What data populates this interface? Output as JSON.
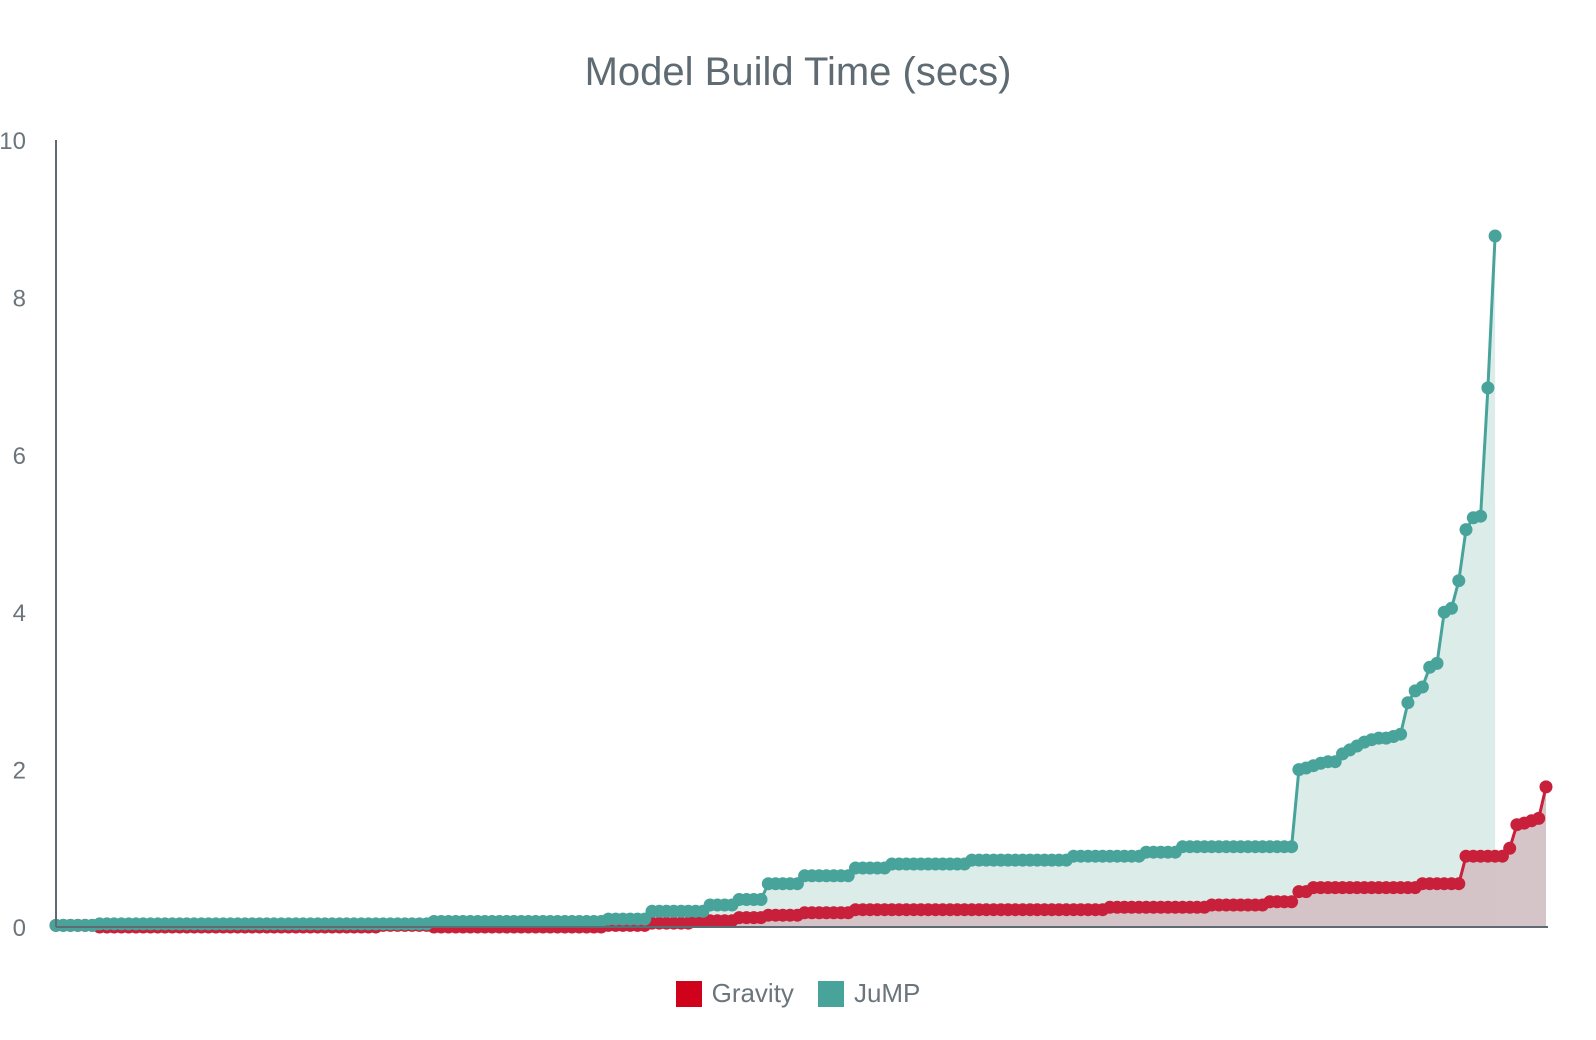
{
  "chart_data": {
    "type": "line",
    "title": "Model Build Time (secs)",
    "xlabel": "",
    "ylabel": "",
    "ylim": [
      0,
      10
    ],
    "yticks": [
      0,
      2,
      4,
      6,
      8,
      10
    ],
    "grid": false,
    "legend_position": "bottom-center",
    "x_range": [
      1,
      200
    ],
    "series": [
      {
        "name": "Gravity",
        "color": "#d0021b",
        "line_color": "#c8203a",
        "fill_color": "#d4c2c5",
        "steps": [
          {
            "from": 1,
            "to": 6,
            "value": 0.02
          },
          {
            "from": 7,
            "to": 45,
            "value": 0.0
          },
          {
            "from": 46,
            "to": 52,
            "value": 0.02
          },
          {
            "from": 53,
            "to": 76,
            "value": 0.0
          },
          {
            "from": 77,
            "to": 82,
            "value": 0.02
          },
          {
            "from": 83,
            "to": 88,
            "value": 0.05
          },
          {
            "from": 89,
            "to": 94,
            "value": 0.08
          },
          {
            "from": 95,
            "to": 98,
            "value": 0.12
          },
          {
            "from": 99,
            "to": 103,
            "value": 0.15
          },
          {
            "from": 104,
            "to": 110,
            "value": 0.18
          },
          {
            "from": 111,
            "to": 145,
            "value": 0.22
          },
          {
            "from": 146,
            "to": 159,
            "value": 0.25
          },
          {
            "from": 160,
            "to": 167,
            "value": 0.28
          },
          {
            "from": 168,
            "to": 171,
            "value": 0.32
          },
          {
            "from": 172,
            "to": 173,
            "value": 0.45
          },
          {
            "from": 174,
            "to": 188,
            "value": 0.5
          },
          {
            "from": 189,
            "to": 194,
            "value": 0.55
          },
          {
            "from": 195,
            "to": 200,
            "value": 0.9
          }
        ],
        "tail": [
          1.0,
          1.3,
          1.32,
          1.35,
          1.38,
          1.78
        ]
      },
      {
        "name": "JuMP",
        "color": "#48a39a",
        "line_color": "#48a39a",
        "fill_color": "#dbece9",
        "steps": [
          {
            "from": 1,
            "to": 6,
            "value": 0.02
          },
          {
            "from": 7,
            "to": 52,
            "value": 0.04
          },
          {
            "from": 53,
            "to": 76,
            "value": 0.07
          },
          {
            "from": 77,
            "to": 82,
            "value": 0.1
          },
          {
            "from": 83,
            "to": 90,
            "value": 0.2
          },
          {
            "from": 91,
            "to": 94,
            "value": 0.28
          },
          {
            "from": 95,
            "to": 98,
            "value": 0.35
          },
          {
            "from": 99,
            "to": 103,
            "value": 0.55
          },
          {
            "from": 104,
            "to": 110,
            "value": 0.65
          },
          {
            "from": 111,
            "to": 115,
            "value": 0.75
          },
          {
            "from": 116,
            "to": 126,
            "value": 0.8
          },
          {
            "from": 127,
            "to": 140,
            "value": 0.85
          },
          {
            "from": 141,
            "to": 150,
            "value": 0.9
          },
          {
            "from": 151,
            "to": 155,
            "value": 0.95
          },
          {
            "from": 156,
            "to": 166,
            "value": 1.02
          },
          {
            "from": 167,
            "to": 171,
            "value": 1.02
          }
        ],
        "tail": [
          2.0,
          2.02,
          2.05,
          2.08,
          2.1,
          2.1,
          2.2,
          2.25,
          2.3,
          2.35,
          2.38,
          2.4,
          2.4,
          2.42,
          2.45,
          2.85,
          3.0,
          3.05,
          3.3,
          3.35,
          4.0,
          4.05,
          4.4,
          5.05,
          5.2,
          5.22,
          6.85,
          8.78
        ]
      }
    ]
  }
}
